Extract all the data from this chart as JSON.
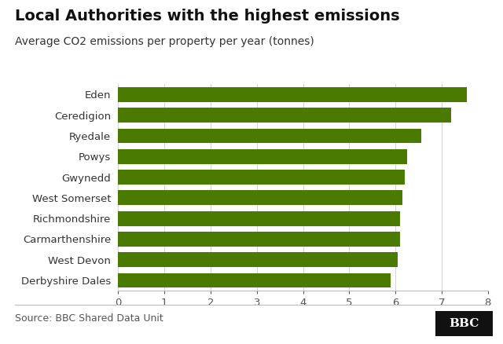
{
  "title": "Local Authorities with the highest emissions",
  "subtitle": "Average CO2 emissions per property per year (tonnes)",
  "source": "Source: BBC Shared Data Unit",
  "categories": [
    "Derbyshire Dales",
    "West Devon",
    "Carmarthenshire",
    "Richmondshire",
    "West Somerset",
    "Gwynedd",
    "Powys",
    "Ryedale",
    "Ceredigion",
    "Eden"
  ],
  "values": [
    5.9,
    6.05,
    6.1,
    6.1,
    6.15,
    6.2,
    6.25,
    6.55,
    7.2,
    7.55
  ],
  "bar_color": "#4a7a00",
  "xlim": [
    0,
    8
  ],
  "xticks": [
    0,
    1,
    2,
    3,
    4,
    5,
    6,
    7,
    8
  ],
  "background_color": "#ffffff",
  "title_fontsize": 14,
  "subtitle_fontsize": 10,
  "label_fontsize": 9.5,
  "tick_fontsize": 9.5,
  "source_fontsize": 9,
  "bbc_text": "BBC"
}
